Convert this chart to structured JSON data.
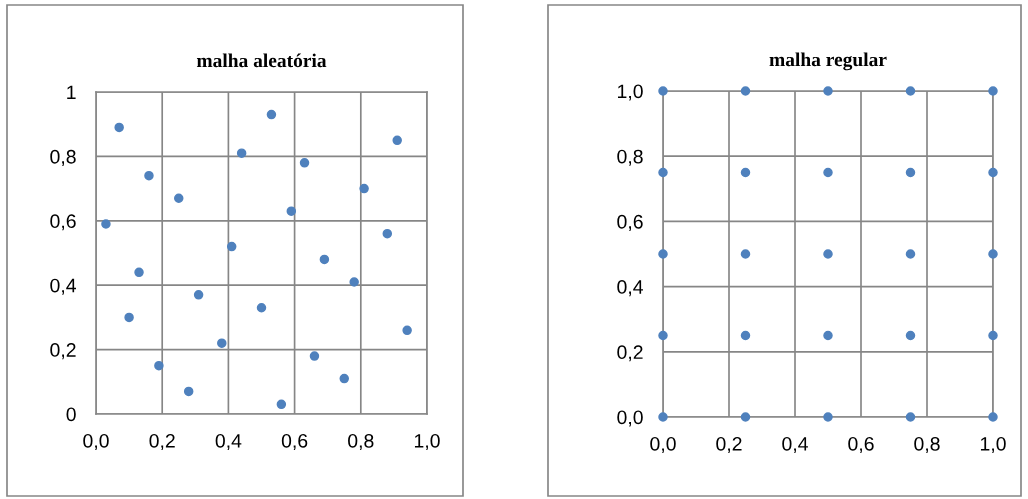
{
  "chart_data": [
    {
      "type": "scatter",
      "title": "malha aleatória",
      "marker": "circle",
      "grid": true,
      "series": [
        {
          "color": "#4f81bd",
          "x": [
            0.07,
            0.16,
            0.25,
            0.03,
            0.13,
            0.1,
            0.19,
            0.28,
            0.31,
            0.38,
            0.41,
            0.44,
            0.53,
            0.5,
            0.56,
            0.59,
            0.63,
            0.69,
            0.66,
            0.75,
            0.78,
            0.81,
            0.88,
            0.91,
            0.94
          ],
          "values": [
            0.89,
            0.74,
            0.67,
            0.59,
            0.44,
            0.3,
            0.15,
            0.07,
            0.37,
            0.22,
            0.52,
            0.81,
            0.93,
            0.33,
            0.03,
            0.63,
            0.78,
            0.48,
            0.18,
            0.11,
            0.41,
            0.7,
            0.56,
            0.85,
            0.26
          ]
        }
      ],
      "xlim": [
        0,
        1
      ],
      "ylim": [
        0,
        1
      ],
      "xticks": [
        {
          "value": 0,
          "label": "0,0"
        },
        {
          "value": 0.2,
          "label": "0,2"
        },
        {
          "value": 0.4,
          "label": "0,4"
        },
        {
          "value": 0.6,
          "label": "0,6"
        },
        {
          "value": 0.8,
          "label": "0,8"
        },
        {
          "value": 1,
          "label": "1,0"
        }
      ],
      "yticks": [
        0,
        {
          "value": 0.2,
          "label": "0,2"
        },
        {
          "value": 0.4,
          "label": "0,4"
        },
        {
          "value": 0.6,
          "label": "0,6"
        },
        {
          "value": 0.8,
          "label": "0,8"
        },
        1
      ]
    },
    {
      "type": "scatter",
      "title": "malha regular",
      "marker": "circle",
      "grid": true,
      "series": [
        {
          "color": "#4f81bd",
          "x": [
            0,
            0.25,
            0.5,
            0.75,
            1,
            0,
            0.25,
            0.5,
            0.75,
            1,
            0,
            0.25,
            0.5,
            0.75,
            1,
            0,
            0.25,
            0.5,
            0.75,
            1,
            0,
            0.25,
            0.5,
            0.75,
            1
          ],
          "values": [
            1,
            1,
            1,
            1,
            1,
            0.75,
            0.75,
            0.75,
            0.75,
            0.75,
            0.5,
            0.5,
            0.5,
            0.5,
            0.5,
            0.25,
            0.25,
            0.25,
            0.25,
            0.25,
            0,
            0,
            0,
            0,
            0
          ]
        }
      ],
      "xlim": [
        0,
        1
      ],
      "ylim": [
        0,
        1
      ],
      "xticks": [
        {
          "value": 0,
          "label": "0,0"
        },
        {
          "value": 0.2,
          "label": "0,2"
        },
        {
          "value": 0.4,
          "label": "0,4"
        },
        {
          "value": 0.6,
          "label": "0,6"
        },
        {
          "value": 0.8,
          "label": "0,8"
        },
        {
          "value": 1,
          "label": "1,0"
        }
      ],
      "yticks": [
        {
          "value": 0,
          "label": "0,0"
        },
        {
          "value": 0.2,
          "label": "0,2"
        },
        {
          "value": 0.4,
          "label": "0,4"
        },
        {
          "value": 0.6,
          "label": "0,6"
        },
        {
          "value": 0.8,
          "label": "0,8"
        },
        {
          "value": 1,
          "label": "1,0"
        }
      ]
    }
  ]
}
